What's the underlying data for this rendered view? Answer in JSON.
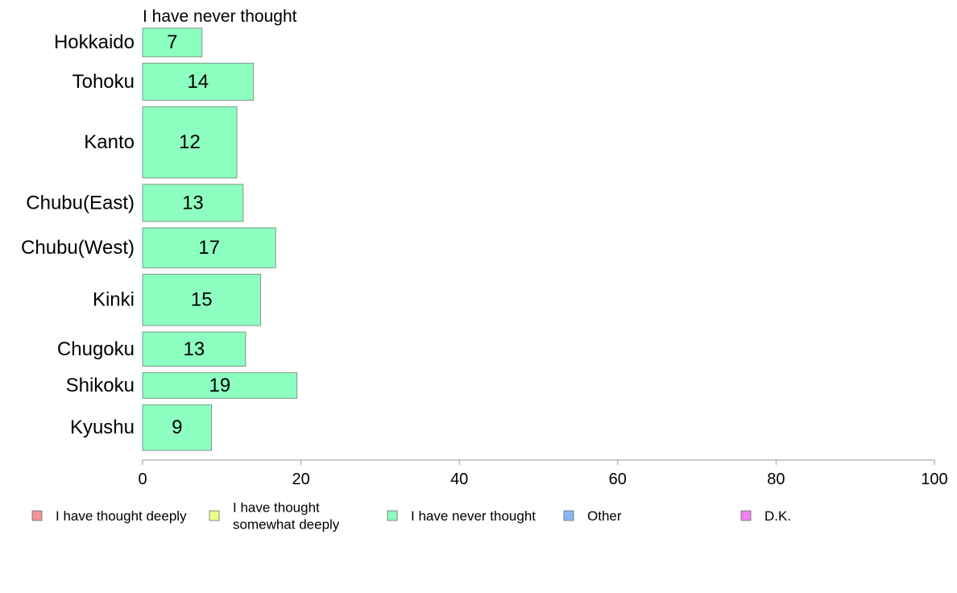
{
  "chart_data": {
    "type": "bar",
    "orientation": "horizontal",
    "title": "I have never thought",
    "categories": [
      "Hokkaido",
      "Tohoku",
      "Kanto",
      "Chubu(East)",
      "Chubu(West)",
      "Kinki",
      "Chugoku",
      "Shikoku",
      "Kyushu"
    ],
    "series": [
      {
        "name": "I have never thought",
        "color": "#8dffc0",
        "values": [
          7,
          14,
          12,
          13,
          17,
          15,
          13,
          19,
          9
        ],
        "value_extent": [
          7.5,
          14.0,
          11.9,
          12.7,
          16.8,
          14.9,
          13.0,
          19.5,
          8.7
        ],
        "relative_weight": [
          1.0,
          1.3,
          2.5,
          1.3,
          1.4,
          1.8,
          1.2,
          0.9,
          1.6
        ]
      }
    ],
    "xlim": [
      0,
      100
    ],
    "xticks": [
      0,
      20,
      40,
      60,
      80,
      100
    ],
    "grid": false,
    "legend_position": "bottom",
    "legend": [
      {
        "label": "I have thought deeply",
        "color": "#f59494"
      },
      {
        "label": "I have thought\nsomewhat deeply",
        "color": "#efff8c"
      },
      {
        "label": "I have never thought",
        "color": "#8dffc0"
      },
      {
        "label": "Other",
        "color": "#86b7f5"
      },
      {
        "label": "D.K.",
        "color": "#f082f2"
      }
    ]
  }
}
